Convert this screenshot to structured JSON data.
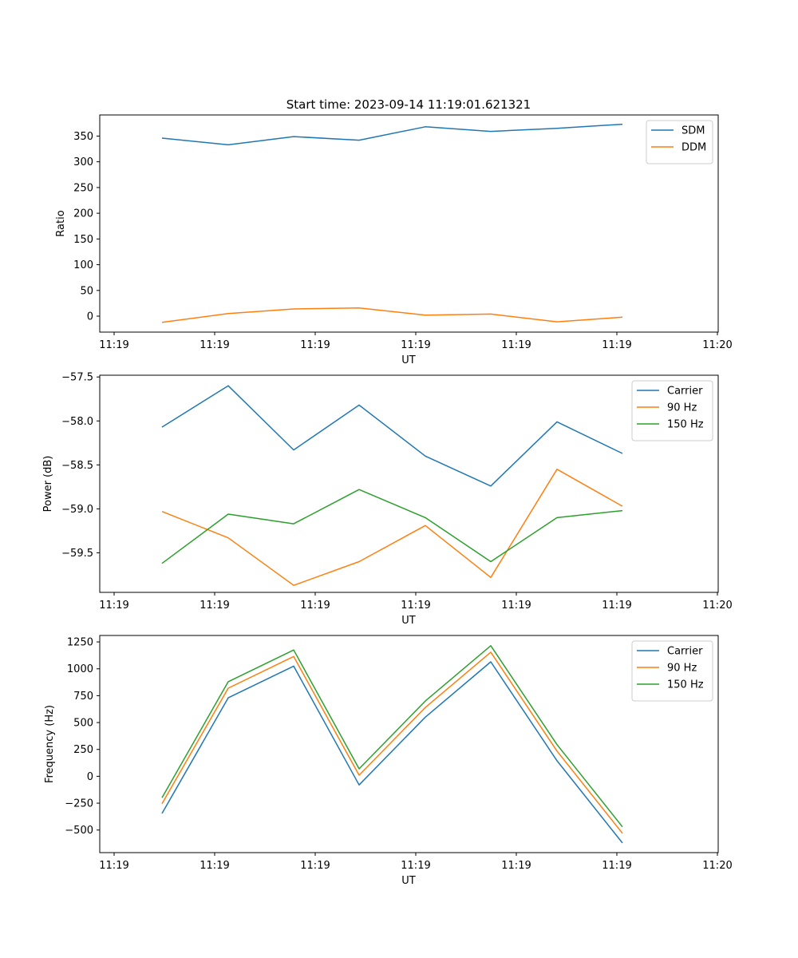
{
  "figure": {
    "title": "Start time: 2023-09-14 11:19:01.621321"
  },
  "chart_data": [
    {
      "type": "line",
      "xlabel": "UT",
      "ylabel": "Ratio",
      "x_tick_labels": [
        "11:19",
        "11:19",
        "11:19",
        "11:19",
        "11:19",
        "11:19",
        "11:20"
      ],
      "y_ticks": [
        0,
        50,
        100,
        150,
        200,
        250,
        300,
        350
      ],
      "y_tick_labels": [
        "0",
        "50",
        "100",
        "150",
        "200",
        "250",
        "300",
        "350"
      ],
      "ylim": [
        -31,
        391
      ],
      "legend_position": "top-right",
      "series": [
        {
          "name": "SDM",
          "color": "#1f77b4",
          "values": [
            346,
            333,
            349,
            342,
            368,
            359,
            365,
            373
          ]
        },
        {
          "name": "DDM",
          "color": "#ff7f0e",
          "values": [
            -12,
            5,
            14,
            16,
            2,
            4,
            -11,
            -2
          ]
        }
      ]
    },
    {
      "type": "line",
      "xlabel": "UT",
      "ylabel": "Power (dB)",
      "x_tick_labels": [
        "11:19",
        "11:19",
        "11:19",
        "11:19",
        "11:19",
        "11:19",
        "11:20"
      ],
      "y_ticks": [
        -59.5,
        -59.0,
        -58.5,
        -58.0,
        -57.5
      ],
      "y_tick_labels": [
        "−59.5",
        "−59.0",
        "−58.5",
        "−58.0",
        "−57.5"
      ],
      "ylim": [
        -59.95,
        -57.48
      ],
      "legend_position": "top-right",
      "series": [
        {
          "name": "Carrier",
          "color": "#1f77b4",
          "values": [
            -58.07,
            -57.6,
            -58.33,
            -57.82,
            -58.4,
            -58.74,
            -58.01,
            -58.37
          ]
        },
        {
          "name": "90 Hz",
          "color": "#ff7f0e",
          "values": [
            -59.03,
            -59.33,
            -59.87,
            -59.6,
            -59.19,
            -59.78,
            -58.55,
            -58.97
          ]
        },
        {
          "name": "150 Hz",
          "color": "#2ca02c",
          "values": [
            -59.62,
            -59.06,
            -59.17,
            -58.78,
            -59.1,
            -59.6,
            -59.1,
            -59.02
          ]
        }
      ]
    },
    {
      "type": "line",
      "xlabel": "UT",
      "ylabel": "Frequency (Hz)",
      "x_tick_labels": [
        "11:19",
        "11:19",
        "11:19",
        "11:19",
        "11:19",
        "11:19",
        "11:20"
      ],
      "y_ticks": [
        -500,
        -250,
        0,
        250,
        500,
        750,
        1000,
        1250
      ],
      "y_tick_labels": [
        "−500",
        "−250",
        "0",
        "250",
        "500",
        "750",
        "1000",
        "1250"
      ],
      "ylim": [
        -710,
        1310
      ],
      "legend_position": "top-right",
      "series": [
        {
          "name": "Carrier",
          "color": "#1f77b4",
          "values": [
            -345,
            730,
            1025,
            -80,
            550,
            1065,
            145,
            -620
          ]
        },
        {
          "name": "90 Hz",
          "color": "#ff7f0e",
          "values": [
            -255,
            820,
            1115,
            10,
            640,
            1155,
            235,
            -530
          ]
        },
        {
          "name": "150 Hz",
          "color": "#2ca02c",
          "values": [
            -200,
            880,
            1175,
            70,
            700,
            1215,
            295,
            -470
          ]
        }
      ]
    }
  ]
}
